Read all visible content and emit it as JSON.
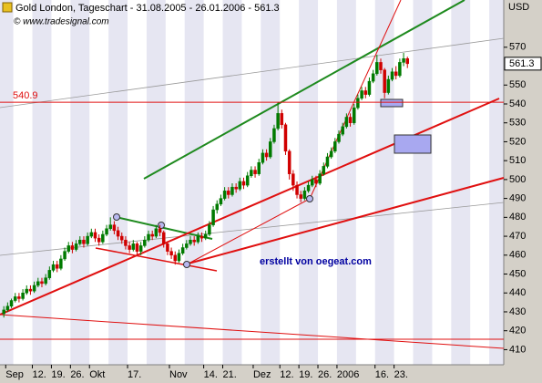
{
  "chart_data": {
    "type": "candlestick",
    "title": "Gold London, Tageschart - 31.08.2005 - 26.01.2006 - 561.3",
    "watermark": "© www.tradesignal.com",
    "y_axis_label": "USD",
    "annotation": "erstellt von oegeat.com",
    "level": 540.9,
    "last_price": 561.3,
    "up_color": "#007a00",
    "down_color": "#d00000",
    "open": [
      429,
      431,
      433,
      436,
      438,
      437,
      440,
      442,
      441,
      444,
      446,
      445,
      448,
      452,
      455,
      453,
      458,
      462,
      465,
      463,
      466,
      468,
      466,
      470,
      472,
      469,
      467,
      471,
      474,
      476,
      473,
      470,
      468,
      465,
      463,
      466,
      462,
      465,
      468,
      471,
      470,
      474,
      472,
      466,
      462,
      460,
      457,
      461,
      464,
      466,
      468,
      467,
      470,
      469,
      471,
      476,
      484,
      487,
      490,
      494,
      492,
      496,
      495,
      499,
      497,
      502,
      505,
      503,
      509,
      514,
      512,
      520,
      527,
      535,
      529,
      515,
      503,
      497,
      492,
      490,
      494,
      497,
      500,
      498,
      503,
      507,
      512,
      515,
      520,
      524,
      528,
      533,
      530,
      538,
      543,
      547,
      545,
      552,
      556,
      562,
      558,
      546,
      553,
      557,
      555,
      562,
      564
    ],
    "high": [
      433,
      435,
      437,
      440,
      440,
      442,
      444,
      444,
      446,
      448,
      448,
      450,
      454,
      457,
      457,
      460,
      464,
      467,
      467,
      468,
      470,
      470,
      472,
      474,
      474,
      471,
      473,
      476,
      480,
      478,
      475,
      472,
      470,
      467,
      468,
      467,
      467,
      470,
      473,
      473,
      476,
      476,
      473,
      467,
      464,
      462,
      463,
      466,
      468,
      470,
      470,
      472,
      472,
      473,
      478,
      486,
      489,
      492,
      496,
      496,
      498,
      498,
      501,
      501,
      504,
      507,
      507,
      511,
      516,
      516,
      522,
      529,
      541,
      537,
      530,
      516,
      505,
      499,
      494,
      496,
      499,
      502,
      502,
      505,
      509,
      514,
      517,
      522,
      526,
      530,
      535,
      535,
      540,
      545,
      549,
      549,
      554,
      558,
      566,
      564,
      559,
      555,
      559,
      560,
      564,
      567,
      565
    ],
    "low": [
      427,
      430,
      432,
      435,
      435,
      436,
      439,
      439,
      440,
      443,
      443,
      444,
      447,
      451,
      451,
      452,
      457,
      461,
      461,
      462,
      465,
      464,
      465,
      469,
      467,
      465,
      466,
      470,
      473,
      471,
      468,
      466,
      463,
      461,
      462,
      460,
      460,
      464,
      467,
      468,
      469,
      470,
      464,
      460,
      458,
      455,
      456,
      460,
      463,
      465,
      465,
      466,
      467,
      468,
      470,
      475,
      482,
      486,
      489,
      490,
      491,
      493,
      494,
      495,
      496,
      501,
      501,
      502,
      508,
      510,
      511,
      519,
      526,
      527,
      513,
      500,
      494,
      490,
      488,
      489,
      493,
      496,
      496,
      497,
      502,
      506,
      511,
      514,
      519,
      523,
      527,
      528,
      529,
      537,
      542,
      543,
      544,
      551,
      555,
      556,
      543,
      545,
      552,
      553,
      554,
      560,
      559
    ],
    "close": [
      431,
      433,
      436,
      438,
      437,
      440,
      442,
      441,
      444,
      446,
      445,
      448,
      452,
      455,
      453,
      458,
      462,
      465,
      463,
      466,
      468,
      466,
      470,
      472,
      469,
      467,
      471,
      474,
      476,
      473,
      470,
      468,
      465,
      463,
      466,
      462,
      465,
      468,
      471,
      470,
      474,
      472,
      466,
      462,
      460,
      457,
      461,
      464,
      466,
      468,
      467,
      470,
      469,
      471,
      476,
      484,
      487,
      490,
      494,
      492,
      496,
      495,
      499,
      497,
      502,
      505,
      503,
      509,
      514,
      512,
      520,
      527,
      535,
      529,
      515,
      503,
      497,
      492,
      490,
      494,
      497,
      500,
      498,
      503,
      507,
      512,
      515,
      520,
      524,
      528,
      533,
      530,
      538,
      543,
      547,
      545,
      552,
      556,
      562,
      558,
      546,
      553,
      557,
      555,
      562,
      564,
      561.3
    ],
    "xlim": [
      -1,
      131.3
    ],
    "xticks": [
      {
        "value": 1,
        "label": "Sep"
      },
      {
        "value": 8,
        "label": "12."
      },
      {
        "value": 13,
        "label": "19."
      },
      {
        "value": 18,
        "label": "26."
      },
      {
        "value": 23,
        "label": "Okt"
      },
      {
        "value": 33,
        "label": "17."
      },
      {
        "value": 44,
        "label": "Nov"
      },
      {
        "value": 53,
        "label": "14."
      },
      {
        "value": 58,
        "label": "21."
      },
      {
        "value": 66,
        "label": "Dez"
      },
      {
        "value": 73,
        "label": "12."
      },
      {
        "value": 78,
        "label": "19."
      },
      {
        "value": 83,
        "label": "26."
      },
      {
        "value": 88,
        "label": "2006"
      },
      {
        "value": 98,
        "label": "16."
      },
      {
        "value": 103,
        "label": "23."
      }
    ],
    "ylim": [
      402,
      595
    ],
    "yticks": [
      410,
      420,
      430,
      440,
      450,
      460,
      470,
      480,
      490,
      500,
      510,
      520,
      530,
      540,
      550,
      570
    ]
  }
}
